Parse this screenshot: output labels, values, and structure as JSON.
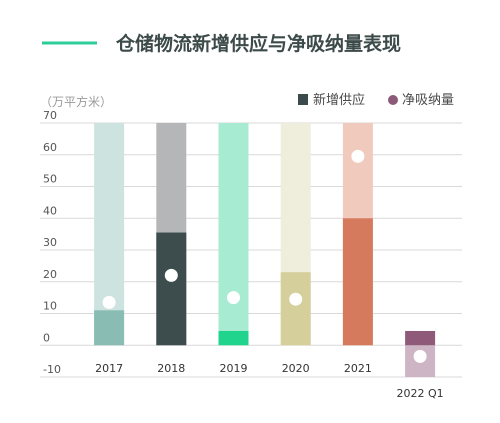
{
  "chart_data": {
    "type": "bar",
    "title": "仓储物流新增供应与净吸纳量表现",
    "unit_label": "（万平方米）",
    "accent_color": "#2ecc9a",
    "categories": [
      "2017",
      "2018",
      "2019",
      "2020",
      "2021",
      "2022 Q1"
    ],
    "y_ticks": [
      70,
      60,
      50,
      40,
      30,
      20,
      10,
      0,
      -10
    ],
    "ylim": [
      -10,
      70
    ],
    "grid": true,
    "legend_position": "top-right",
    "legend": {
      "supply_label": "新增供应",
      "absorption_label": "净吸纳量",
      "supply_color": "#3b4a4a",
      "absorption_color": "#8a5a78"
    },
    "series": [
      {
        "name": "新增供应",
        "values": [
          11,
          35.5,
          4.5,
          23,
          40,
          4.5
        ],
        "colors": [
          "#89bcb3",
          "#3d4d4d",
          "#20d48e",
          "#d4cf9b",
          "#d67a5e",
          "#8f5a7a"
        ]
      },
      {
        "name": "净吸纳量",
        "values": [
          13.5,
          22,
          15,
          14.5,
          59.5,
          -3.5
        ]
      }
    ],
    "backgrounds": {
      "colors": [
        "#cde3df",
        "#b4b6b8",
        "#a7ecd2",
        "#efeddb",
        "#f0cbbd",
        "#cdb5c5"
      ]
    }
  }
}
